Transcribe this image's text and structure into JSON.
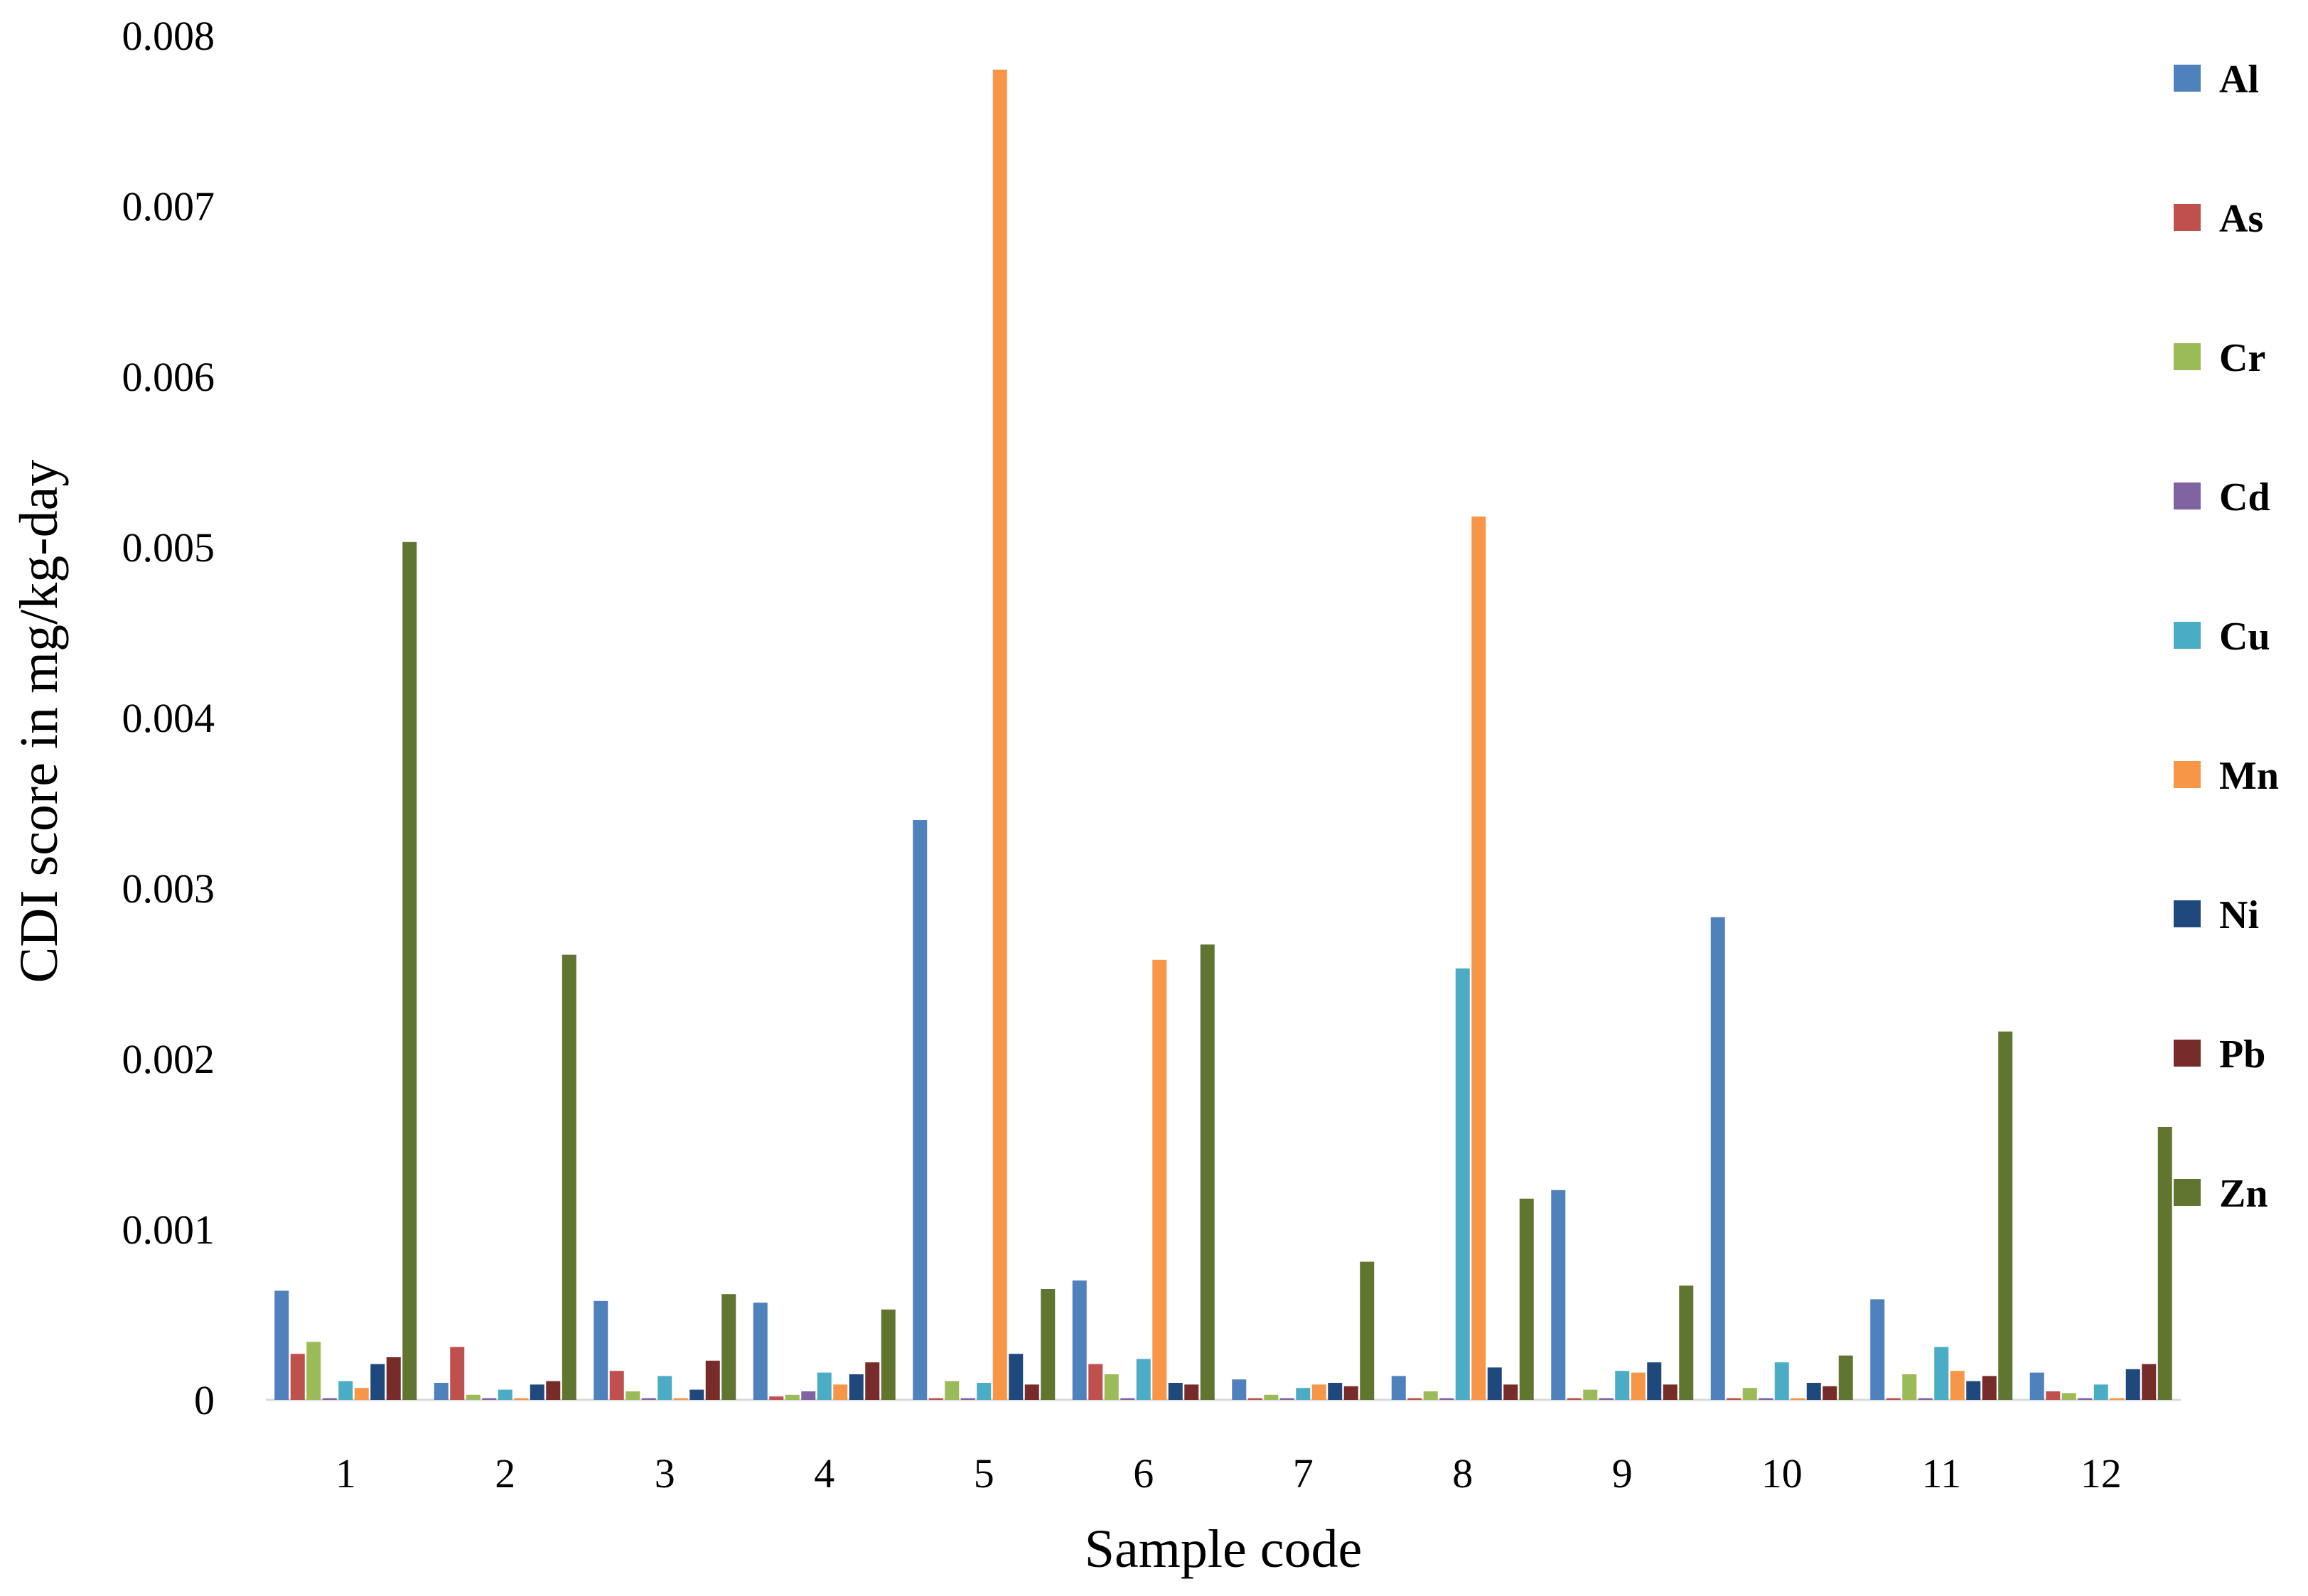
{
  "chart_data": {
    "type": "bar",
    "xlabel": "Sample code",
    "ylabel": "CDI score in mg/kg-day",
    "ylim": [
      0,
      0.008
    ],
    "yticks": [
      "0",
      "0.001",
      "0.002",
      "0.003",
      "0.004",
      "0.005",
      "0.006",
      "0.007",
      "0.008"
    ],
    "grid": false,
    "legend_position": "right",
    "categories": [
      "1",
      "2",
      "3",
      "4",
      "5",
      "6",
      "7",
      "8",
      "9",
      "10",
      "11",
      "12"
    ],
    "series": [
      {
        "name": "Al",
        "color": "#4f81bd",
        "values": [
          0.00064,
          0.0001,
          0.00058,
          0.00057,
          0.0034,
          0.0007,
          0.00012,
          0.00014,
          0.00123,
          0.00283,
          0.00059,
          0.00016
        ]
      },
      {
        "name": "As",
        "color": "#c0504d",
        "values": [
          0.00027,
          0.00031,
          0.00017,
          2e-05,
          1e-05,
          0.00021,
          1e-05,
          1e-05,
          1e-05,
          1e-05,
          1e-05,
          5e-05
        ]
      },
      {
        "name": "Cr",
        "color": "#9bbb59",
        "values": [
          0.00034,
          3e-05,
          5e-05,
          3e-05,
          0.00011,
          0.00015,
          3e-05,
          5e-05,
          6e-05,
          7e-05,
          0.00015,
          4e-05
        ]
      },
      {
        "name": "Cd",
        "color": "#8064a2",
        "values": [
          1e-05,
          1e-05,
          1e-05,
          5e-05,
          1e-05,
          1e-05,
          1e-05,
          1e-05,
          1e-05,
          1e-05,
          1e-05,
          1e-05
        ]
      },
      {
        "name": "Cu",
        "color": "#4bacc6",
        "values": [
          0.00011,
          6e-05,
          0.00014,
          0.00016,
          0.0001,
          0.00024,
          7e-05,
          0.00253,
          0.00017,
          0.00022,
          0.00031,
          9e-05
        ]
      },
      {
        "name": "Mn",
        "color": "#f79646",
        "values": [
          7e-05,
          1e-05,
          1e-05,
          9e-05,
          0.0078,
          0.00258,
          9e-05,
          0.00518,
          0.00016,
          1e-05,
          0.00017,
          1e-05
        ]
      },
      {
        "name": "Ni",
        "color": "#1f497d",
        "values": [
          0.00021,
          9e-05,
          6e-05,
          0.00015,
          0.00027,
          0.0001,
          0.0001,
          0.00019,
          0.00022,
          0.0001,
          0.00011,
          0.00018
        ]
      },
      {
        "name": "Pb",
        "color": "#772c2a",
        "values": [
          0.00025,
          0.00011,
          0.00023,
          0.00022,
          9e-05,
          9e-05,
          8e-05,
          9e-05,
          9e-05,
          8e-05,
          0.00014,
          0.00021
        ]
      },
      {
        "name": "Zn",
        "color": "#5f7530",
        "values": [
          0.00503,
          0.00261,
          0.00062,
          0.00053,
          0.00065,
          0.00267,
          0.00081,
          0.00118,
          0.00067,
          0.00026,
          0.00216,
          0.0016
        ]
      }
    ]
  }
}
